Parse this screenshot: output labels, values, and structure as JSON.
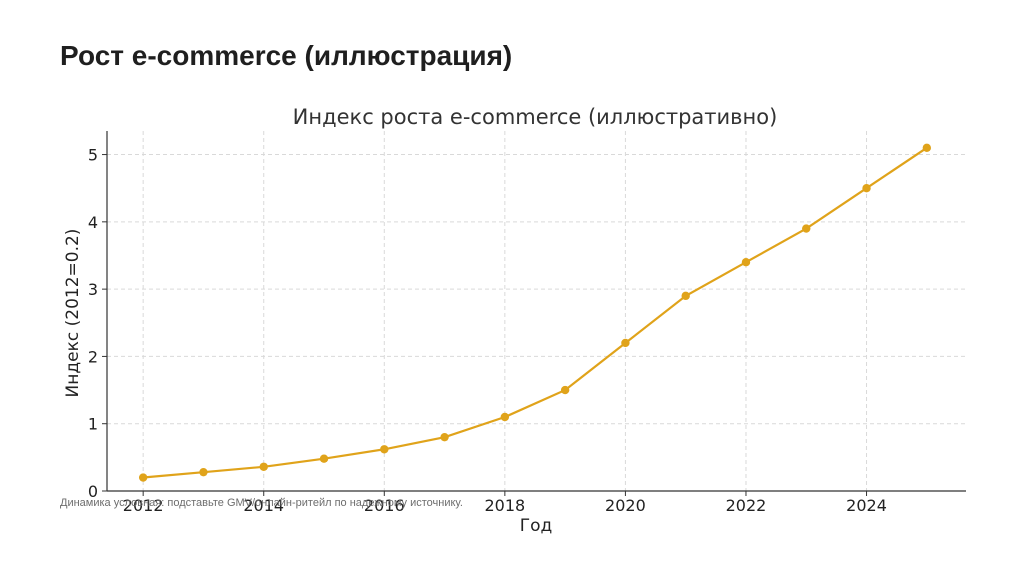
{
  "slide": {
    "title": "Рост e-commerce (иллюстрация)",
    "caption": "Динамика условная: подставьте GMV/онлайн-ритейл по надежному источнику."
  },
  "colors": {
    "line": "#E0A31A",
    "grid": "#d9d9d9",
    "axis": "#333333"
  },
  "chart_data": {
    "type": "line",
    "title": "Индекс роста e-commerce (иллюстративно)",
    "xlabel": "Год",
    "ylabel": "Индекс (2012=0.2)",
    "x": [
      2012,
      2013,
      2014,
      2015,
      2016,
      2017,
      2018,
      2019,
      2020,
      2021,
      2022,
      2023,
      2024,
      2025
    ],
    "series": [
      {
        "values": [
          0.2,
          0.28,
          0.36,
          0.48,
          0.62,
          0.8,
          1.1,
          1.5,
          2.2,
          2.9,
          3.4,
          3.9,
          4.5,
          5.1
        ]
      }
    ],
    "xticks": [
      2012,
      2014,
      2016,
      2018,
      2020,
      2022,
      2024
    ],
    "yticks": [
      0,
      1,
      2,
      3,
      4,
      5
    ],
    "xlim": [
      2011.4,
      2025.65
    ],
    "ylim": [
      0,
      5.35
    ],
    "grid": true
  }
}
